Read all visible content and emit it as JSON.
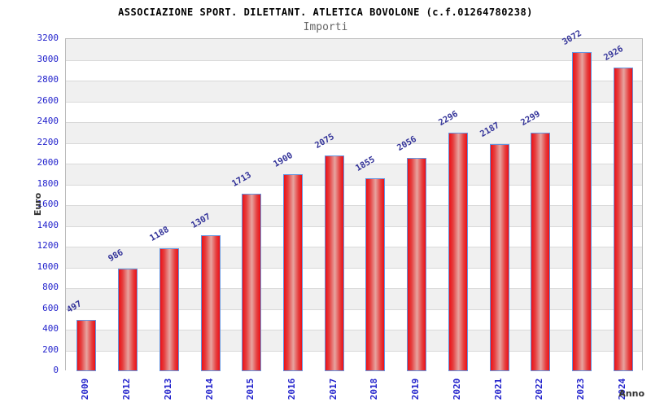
{
  "chart_data": {
    "type": "bar",
    "title": "ASSOCIAZIONE SPORT. DILETTANT. ATLETICA BOVOLONE (c.f.01264780238)",
    "subtitle": "Importi",
    "xlabel": "Anno",
    "ylabel": "Euro",
    "categories": [
      "2009",
      "2012",
      "2013",
      "2014",
      "2015",
      "2016",
      "2017",
      "2018",
      "2019",
      "2020",
      "2021",
      "2022",
      "2023",
      "2024"
    ],
    "values": [
      497,
      986,
      1188,
      1307,
      1713,
      1900,
      2075,
      1855,
      2056,
      2296,
      2187,
      2299,
      3072,
      2926
    ],
    "ylim": [
      0,
      3200
    ],
    "ytick_step": 200,
    "grid": "horizontal-on",
    "legend": "none",
    "bar_value_labels_rotation_deg": -30,
    "x_tick_rotation_deg": -90,
    "colors": {
      "bar_edge": "#ec1016",
      "bar_center_highlight": "#e7a4a0",
      "bar_border": "#6495e0",
      "tick_label_blue": "#2222cc",
      "value_label_blue": "#333399",
      "band_gray": "#f0f0f0",
      "band_white": "#ffffff",
      "gridline": "#d9d9d9",
      "plot_border": "#bbbbbb",
      "title_color": "#000000",
      "subtitle_color": "#666666",
      "axis_title_color": "#333333",
      "background": "#ffffff"
    }
  }
}
